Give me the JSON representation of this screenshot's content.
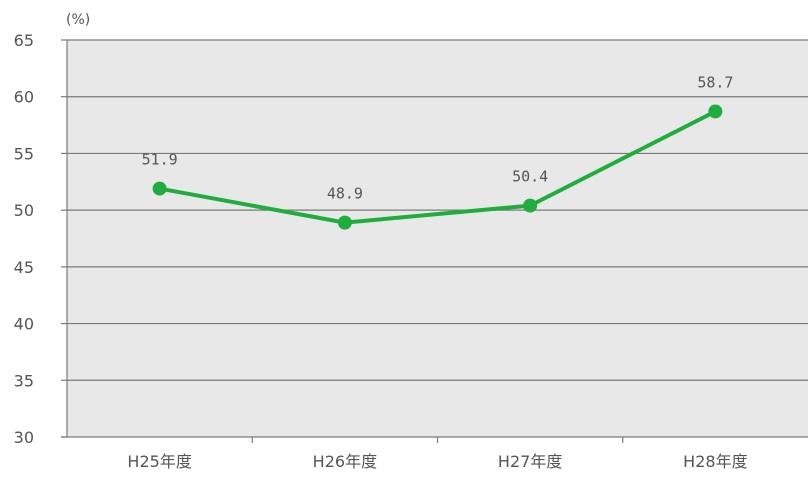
{
  "chart_data": {
    "type": "line",
    "title": "",
    "xlabel": "",
    "ylabel": "(%)",
    "categories": [
      "H25年度",
      "H26年度",
      "H27年度",
      "H28年度"
    ],
    "series": [
      {
        "values": [
          51.9,
          48.9,
          50.4,
          58.7
        ],
        "labels": [
          "51.9",
          "48.9",
          "50.4",
          "58.7"
        ]
      }
    ],
    "ylim": [
      30,
      65
    ],
    "yticks": [
      30,
      35,
      40,
      45,
      50,
      55,
      60,
      65
    ],
    "grid": true,
    "legend": "none",
    "colors": {
      "line": "#1fad3e",
      "plot_bg": "#e8e8e8",
      "grid": "#7a7a7a",
      "axis": "#7a7a7a",
      "text": "#555555"
    }
  }
}
